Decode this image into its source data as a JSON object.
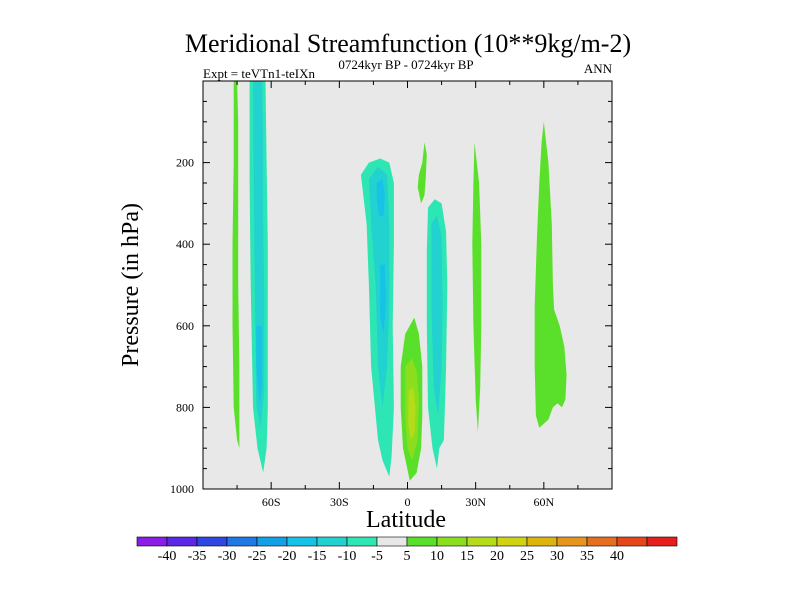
{
  "chart_data": {
    "type": "heatmap",
    "title": "Meridional Streamfunction (10**9kg/m-2)",
    "left_string": "Expt = teVTn1-teIXn",
    "center_string": "0724kyr BP - 0724kyr BP",
    "right_string": "ANN",
    "xlabel": "Latitude",
    "ylabel": "Pressure (in hPa)",
    "xlim": [
      -90,
      90
    ],
    "ylim": [
      1000,
      0
    ],
    "y_inverted": true,
    "x_ticks": [
      {
        "value": -60,
        "label": "60S"
      },
      {
        "value": -30,
        "label": "30S"
      },
      {
        "value": 0,
        "label": "0"
      },
      {
        "value": 30,
        "label": "30N"
      },
      {
        "value": 60,
        "label": "60N"
      }
    ],
    "y_ticks": [
      {
        "value": 200,
        "label": "200"
      },
      {
        "value": 400,
        "label": "400"
      },
      {
        "value": 600,
        "label": "600"
      },
      {
        "value": 800,
        "label": "800"
      },
      {
        "value": 1000,
        "label": "1000"
      }
    ],
    "background_color": "#e8e8e8",
    "colorbar": {
      "labels": [
        "-40",
        "-35",
        "-30",
        "-25",
        "-20",
        "-15",
        "-10",
        "-5",
        "5",
        "10",
        "15",
        "20",
        "25",
        "30",
        "35",
        "40"
      ],
      "colors": [
        "#8a1ee6",
        "#5a28e6",
        "#2e46e2",
        "#1e78e6",
        "#14a0e6",
        "#16c2e6",
        "#22d2d0",
        "#2ee6b4",
        "#e8e8e8",
        "#5ae02a",
        "#8ade1e",
        "#b4dc1a",
        "#d2d214",
        "#dcb40e",
        "#e6961e",
        "#e66e1e",
        "#e6461e",
        "#e61e1e"
      ]
    },
    "contours": [
      {
        "name": "SH polar positive band",
        "level": 5,
        "color": "#5ae02a",
        "points": [
          [
            -76.5,
            0
          ],
          [
            -75,
            0
          ],
          [
            -74.5,
            100
          ],
          [
            -74.5,
            500
          ],
          [
            -74,
            700
          ],
          [
            -74,
            900
          ],
          [
            -75,
            880
          ],
          [
            -76.5,
            800
          ],
          [
            -77,
            600
          ],
          [
            -77,
            400
          ],
          [
            -76.5,
            200
          ]
        ]
      },
      {
        "name": "SH negative band outer",
        "level": -5,
        "color": "#2ee6b4",
        "points": [
          [
            -69.5,
            0
          ],
          [
            -62.5,
            0
          ],
          [
            -62,
            200
          ],
          [
            -61.5,
            400
          ],
          [
            -61.5,
            600
          ],
          [
            -61.5,
            800
          ],
          [
            -62,
            900
          ],
          [
            -63.5,
            960
          ],
          [
            -66,
            900
          ],
          [
            -68,
            800
          ],
          [
            -69,
            500
          ],
          [
            -69.5,
            250
          ]
        ]
      },
      {
        "name": "SH negative band inner",
        "level": -10,
        "color": "#22d2d0",
        "points": [
          [
            -68,
            0
          ],
          [
            -64,
            0
          ],
          [
            -63.5,
            150
          ],
          [
            -63.5,
            350
          ],
          [
            -63,
            550
          ],
          [
            -63,
            750
          ],
          [
            -64.5,
            850
          ],
          [
            -66.5,
            800
          ],
          [
            -67,
            600
          ],
          [
            -67.5,
            350
          ]
        ]
      },
      {
        "name": "SH negative band core",
        "level": -15,
        "color": "#16c2e6",
        "points": [
          [
            -66.5,
            600
          ],
          [
            -64,
            600
          ],
          [
            -64,
            750
          ],
          [
            -65.2,
            790
          ],
          [
            -66.5,
            700
          ]
        ]
      },
      {
        "name": "Southern Hadley cell outer",
        "level": -5,
        "color": "#2ee6b4",
        "points": [
          [
            -20.5,
            230
          ],
          [
            -17,
            200
          ],
          [
            -12,
            190
          ],
          [
            -8,
            200
          ],
          [
            -6,
            250
          ],
          [
            -6,
            400
          ],
          [
            -6.5,
            600
          ],
          [
            -6,
            800
          ],
          [
            -7,
            920
          ],
          [
            -8,
            970
          ],
          [
            -11,
            930
          ],
          [
            -13,
            880
          ],
          [
            -16,
            700
          ],
          [
            -17,
            500
          ],
          [
            -18,
            350
          ]
        ]
      },
      {
        "name": "Southern Hadley cell middle",
        "level": -10,
        "color": "#22d2d0",
        "points": [
          [
            -17,
            240
          ],
          [
            -13,
            210
          ],
          [
            -9,
            230
          ],
          [
            -8,
            350
          ],
          [
            -8,
            550
          ],
          [
            -9,
            700
          ],
          [
            -11,
            800
          ],
          [
            -13,
            700
          ],
          [
            -14,
            500
          ],
          [
            -16,
            350
          ]
        ]
      },
      {
        "name": "Southern Hadley cell core",
        "level": -15,
        "color": "#16c2e6",
        "points": [
          [
            -13.5,
            250
          ],
          [
            -11,
            240
          ],
          [
            -10,
            280
          ],
          [
            -10.5,
            330
          ],
          [
            -12.5,
            330
          ],
          [
            -13.5,
            290
          ]
        ]
      },
      {
        "name": "Southern Hadley lower core",
        "level": -15,
        "color": "#16c2e6",
        "points": [
          [
            -12,
            450
          ],
          [
            -10,
            450
          ],
          [
            -9.5,
            550
          ],
          [
            -10.5,
            620
          ],
          [
            -12,
            580
          ]
        ]
      },
      {
        "name": "Northern Hadley cell outer",
        "level": -5,
        "color": "#2ee6b4",
        "points": [
          [
            9,
            310
          ],
          [
            12,
            290
          ],
          [
            15,
            300
          ],
          [
            17,
            370
          ],
          [
            17.5,
            500
          ],
          [
            17,
            700
          ],
          [
            16,
            880
          ],
          [
            14,
            900
          ],
          [
            13,
            950
          ],
          [
            11,
            900
          ],
          [
            9,
            800
          ],
          [
            8.5,
            600
          ],
          [
            8.5,
            420
          ]
        ]
      },
      {
        "name": "Northern Hadley cell middle",
        "level": -10,
        "color": "#22d2d0",
        "points": [
          [
            10.5,
            350
          ],
          [
            13,
            330
          ],
          [
            15,
            380
          ],
          [
            15.5,
            550
          ],
          [
            15,
            700
          ],
          [
            13.5,
            820
          ],
          [
            11.5,
            750
          ],
          [
            10.5,
            550
          ]
        ]
      },
      {
        "name": "Equatorial upper positive",
        "level": 5,
        "color": "#5ae02a",
        "points": [
          [
            6.5,
            200
          ],
          [
            7.5,
            150
          ],
          [
            8.5,
            180
          ],
          [
            8,
            240
          ],
          [
            7.5,
            280
          ],
          [
            6,
            300
          ],
          [
            4.5,
            260
          ],
          [
            5,
            230
          ]
        ]
      },
      {
        "name": "Equatorial lower positive",
        "level": 5,
        "color": "#5ae02a",
        "points": [
          [
            -1,
            620
          ],
          [
            3,
            580
          ],
          [
            5,
            620
          ],
          [
            6.5,
            700
          ],
          [
            6.5,
            820
          ],
          [
            6,
            900
          ],
          [
            4,
            960
          ],
          [
            1,
            980
          ],
          [
            -2,
            900
          ],
          [
            -3,
            800
          ],
          [
            -3,
            700
          ]
        ]
      },
      {
        "name": "Equatorial lower positive 10",
        "level": 10,
        "color": "#8ade1e",
        "points": [
          [
            -1,
            700
          ],
          [
            2,
            680
          ],
          [
            4,
            710
          ],
          [
            5,
            780
          ],
          [
            4.5,
            880
          ],
          [
            2,
            930
          ],
          [
            0,
            900
          ],
          [
            -1,
            820
          ]
        ]
      },
      {
        "name": "Equatorial lower positive 15",
        "level": 15,
        "color": "#b4dc1a",
        "points": [
          [
            0.5,
            760
          ],
          [
            2.5,
            750
          ],
          [
            3.5,
            800
          ],
          [
            3.2,
            860
          ],
          [
            1.5,
            880
          ],
          [
            0.3,
            840
          ]
        ]
      },
      {
        "name": "NH subtropical positive",
        "level": 5,
        "color": "#5ae02a",
        "points": [
          [
            29.5,
            150
          ],
          [
            31.5,
            250
          ],
          [
            32.5,
            400
          ],
          [
            32.5,
            600
          ],
          [
            32,
            750
          ],
          [
            31,
            860
          ],
          [
            30,
            780
          ],
          [
            29,
            600
          ],
          [
            28.5,
            400
          ],
          [
            29,
            250
          ]
        ]
      },
      {
        "name": "NH midlatitude positive",
        "level": 5,
        "color": "#5ae02a",
        "points": [
          [
            60,
            100
          ],
          [
            62,
            200
          ],
          [
            63.5,
            350
          ],
          [
            64,
            500
          ],
          [
            64.5,
            560
          ],
          [
            67,
            600
          ],
          [
            69,
            650
          ],
          [
            70,
            720
          ],
          [
            69.5,
            780
          ],
          [
            68,
            800
          ],
          [
            66,
            790
          ],
          [
            64,
            800
          ],
          [
            62,
            830
          ],
          [
            58,
            850
          ],
          [
            56.5,
            820
          ],
          [
            56,
            700
          ],
          [
            56,
            550
          ],
          [
            57,
            380
          ],
          [
            58,
            250
          ],
          [
            59,
            150
          ]
        ]
      }
    ]
  }
}
